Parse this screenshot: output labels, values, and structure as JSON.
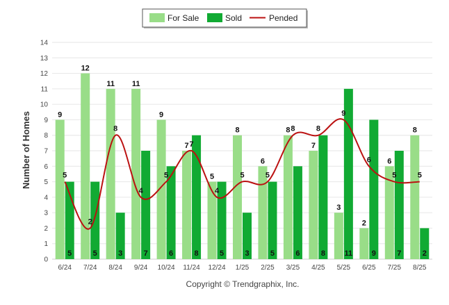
{
  "chart_data": {
    "type": "bar",
    "categories": [
      "6/24",
      "7/24",
      "8/24",
      "9/24",
      "10/24",
      "11/24",
      "12/24",
      "1/25",
      "2/25",
      "3/25",
      "4/25",
      "5/25",
      "6/25",
      "7/25",
      "8/25"
    ],
    "series": [
      {
        "name": "For Sale",
        "type": "bar",
        "color": "#99dd88",
        "values": [
          9,
          12,
          11,
          11,
          9,
          7,
          5,
          8,
          6,
          8,
          7,
          3,
          2,
          6,
          8
        ]
      },
      {
        "name": "Sold",
        "type": "bar",
        "color": "#11aa33",
        "values": [
          5,
          5,
          3,
          7,
          6,
          8,
          5,
          3,
          5,
          6,
          8,
          11,
          9,
          7,
          2
        ]
      },
      {
        "name": "Pended",
        "type": "line",
        "color": "#bb1111",
        "values": [
          5,
          2,
          8,
          4,
          5,
          7,
          4,
          5,
          5,
          8,
          8,
          9,
          6,
          5,
          5
        ]
      }
    ],
    "ylabel": "Number of Homes",
    "xlabel": "",
    "ylim": [
      0,
      14
    ],
    "yticks": [
      0,
      1,
      2,
      3,
      4,
      5,
      6,
      7,
      8,
      9,
      10,
      11,
      12,
      13,
      14
    ],
    "grid": true,
    "legend_position": "top-center",
    "data_labels": true
  },
  "footer": {
    "copyright": "Copyright © Trendgraphix, Inc."
  }
}
